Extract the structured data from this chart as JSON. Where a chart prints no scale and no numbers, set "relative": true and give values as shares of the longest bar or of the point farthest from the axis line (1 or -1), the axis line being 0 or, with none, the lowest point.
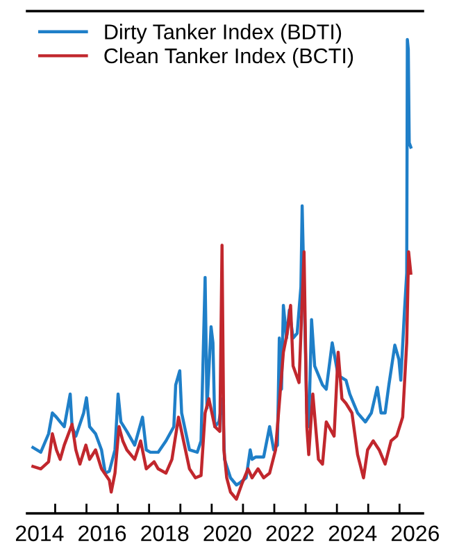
{
  "chart_data": {
    "type": "line",
    "relative": true,
    "legend": "top left",
    "grid": false,
    "xlim": [
      2014.1,
      2026.75
    ],
    "xticks": [
      {
        "value": 2014.5,
        "label": "2014"
      },
      {
        "value": 2015,
        "label": null
      },
      {
        "value": 2016,
        "label": null
      },
      {
        "value": 2016.5,
        "label": "2016"
      },
      {
        "value": 2017,
        "label": null
      },
      {
        "value": 2018,
        "label": null
      },
      {
        "value": 2018.5,
        "label": "2018"
      },
      {
        "value": 2019,
        "label": null
      },
      {
        "value": 2020,
        "label": null
      },
      {
        "value": 2020.5,
        "label": "2020"
      },
      {
        "value": 2021,
        "label": null
      },
      {
        "value": 2022,
        "label": null
      },
      {
        "value": 2022.5,
        "label": "2022"
      },
      {
        "value": 2023,
        "label": null
      },
      {
        "value": 2024,
        "label": null
      },
      {
        "value": 2024.5,
        "label": "2024"
      },
      {
        "value": 2025,
        "label": null
      },
      {
        "value": 2026,
        "label": null
      },
      {
        "value": 2026.5,
        "label": "2026"
      }
    ],
    "series": [
      {
        "name": "Dirty Tanker Index (BDTI)",
        "color": "#1f7fc8",
        "x": [
          2014.29,
          2014.54,
          2014.79,
          2014.91,
          2015.04,
          2015.16,
          2015.29,
          2015.48,
          2015.54,
          2015.66,
          2015.91,
          2016.0,
          2016.1,
          2016.29,
          2016.48,
          2016.6,
          2016.73,
          2016.91,
          2017.01,
          2017.1,
          2017.29,
          2017.54,
          2017.79,
          2017.91,
          2018.04,
          2018.29,
          2018.54,
          2018.79,
          2018.85,
          2018.98,
          2019.04,
          2019.29,
          2019.54,
          2019.66,
          2019.79,
          2019.85,
          2019.98,
          2020.04,
          2020.1,
          2020.23,
          2020.35,
          2020.41,
          2020.6,
          2020.79,
          2020.91,
          2021.1,
          2021.23,
          2021.29,
          2021.41,
          2021.66,
          2021.85,
          2021.98,
          2022.1,
          2022.16,
          2022.23,
          2022.29,
          2022.39,
          2022.48,
          2022.6,
          2022.73,
          2022.85,
          2022.89,
          2023.04,
          2023.1,
          2023.19,
          2023.29,
          2023.54,
          2023.66,
          2023.85,
          2024.04,
          2024.29,
          2024.41,
          2024.66,
          2024.91,
          2025.1,
          2025.29,
          2025.41,
          2025.54,
          2025.66,
          2025.85,
          2025.98,
          2026.04,
          2026.16,
          2026.23,
          2026.25,
          2026.28,
          2026.31,
          2026.36
        ],
        "values": [
          0.139,
          0.129,
          0.168,
          0.212,
          0.203,
          0.193,
          0.183,
          0.252,
          0.183,
          0.163,
          0.212,
          0.244,
          0.183,
          0.168,
          0.134,
          0.085,
          0.089,
          0.134,
          0.252,
          0.193,
          0.173,
          0.144,
          0.203,
          0.134,
          0.129,
          0.129,
          0.153,
          0.183,
          0.271,
          0.301,
          0.212,
          0.134,
          0.129,
          0.153,
          0.498,
          0.222,
          0.394,
          0.36,
          0.183,
          0.193,
          0.242,
          0.114,
          0.075,
          0.06,
          0.065,
          0.075,
          0.134,
          0.114,
          0.119,
          0.119,
          0.183,
          0.134,
          0.144,
          0.37,
          0.262,
          0.439,
          0.37,
          0.429,
          0.37,
          0.38,
          0.478,
          0.649,
          0.212,
          0.183,
          0.409,
          0.311,
          0.271,
          0.262,
          0.36,
          0.291,
          0.281,
          0.252,
          0.212,
          0.193,
          0.212,
          0.266,
          0.212,
          0.212,
          0.271,
          0.355,
          0.325,
          0.281,
          0.429,
          0.507,
          1.0,
          0.979,
          0.782,
          0.773
        ]
      },
      {
        "name": "Clean Tanker Index (BCTI)",
        "color": "#c1272d",
        "x": [
          2014.29,
          2014.54,
          2014.79,
          2014.91,
          2015.04,
          2015.16,
          2015.29,
          2015.54,
          2015.66,
          2015.79,
          2015.98,
          2016.1,
          2016.29,
          2016.48,
          2016.73,
          2016.79,
          2016.91,
          2017.04,
          2017.16,
          2017.29,
          2017.54,
          2017.73,
          2017.91,
          2018.16,
          2018.29,
          2018.54,
          2018.73,
          2018.94,
          2019.1,
          2019.29,
          2019.48,
          2019.66,
          2019.79,
          2019.91,
          2020.1,
          2020.26,
          2020.33,
          2020.39,
          2020.48,
          2020.6,
          2020.79,
          2020.98,
          2021.16,
          2021.29,
          2021.48,
          2021.66,
          2021.85,
          2022.04,
          2022.16,
          2022.29,
          2022.41,
          2022.52,
          2022.6,
          2022.79,
          2022.95,
          2023.04,
          2023.1,
          2023.23,
          2023.41,
          2023.54,
          2023.66,
          2023.91,
          2024.04,
          2024.16,
          2024.29,
          2024.48,
          2024.66,
          2024.85,
          2024.98,
          2025.16,
          2025.35,
          2025.54,
          2025.73,
          2025.91,
          2026.1,
          2026.23,
          2026.29,
          2026.36
        ],
        "values": [
          0.099,
          0.094,
          0.109,
          0.168,
          0.134,
          0.114,
          0.144,
          0.188,
          0.134,
          0.104,
          0.144,
          0.114,
          0.134,
          0.094,
          0.07,
          0.045,
          0.085,
          0.183,
          0.153,
          0.134,
          0.114,
          0.153,
          0.094,
          0.109,
          0.094,
          0.085,
          0.114,
          0.203,
          0.153,
          0.094,
          0.075,
          0.08,
          0.212,
          0.242,
          0.183,
          0.173,
          0.566,
          0.134,
          0.075,
          0.045,
          0.03,
          0.065,
          0.094,
          0.075,
          0.094,
          0.075,
          0.085,
          0.134,
          0.232,
          0.34,
          0.38,
          0.439,
          0.311,
          0.276,
          0.552,
          0.183,
          0.124,
          0.252,
          0.114,
          0.104,
          0.193,
          0.163,
          0.34,
          0.242,
          0.232,
          0.212,
          0.124,
          0.075,
          0.134,
          0.153,
          0.134,
          0.104,
          0.153,
          0.163,
          0.203,
          0.36,
          0.552,
          0.507
        ]
      }
    ]
  }
}
